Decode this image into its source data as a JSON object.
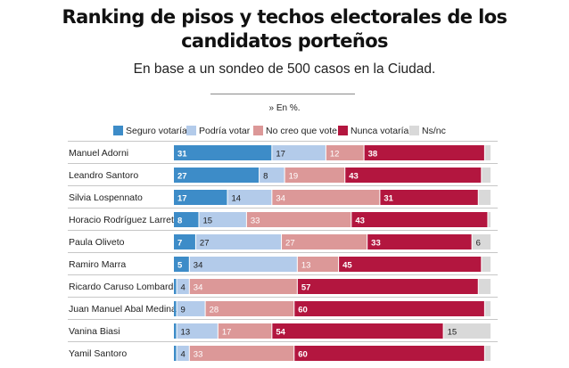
{
  "header": {
    "title_line1": "Ranking de pisos y techos electorales de los",
    "title_line2": "candidatos porteños",
    "subtitle": "En base a un sondeo de 500 casos en la Ciudad.",
    "unit_note": "» En %."
  },
  "colors": {
    "seguro": "#3d8cc8",
    "podria": "#b3cbea",
    "no_creo": "#dc9898",
    "nunca": "#b3163f",
    "nsnc": "#d9d9d9"
  },
  "chart_data": {
    "type": "bar",
    "stacked": true,
    "orientation": "horizontal",
    "title": "Ranking de pisos y techos electorales de los candidatos porteños",
    "unit": "%",
    "xlim": [
      0,
      100
    ],
    "categories": [
      "Manuel Adorni",
      "Leandro Santoro",
      "Silvia Lospennato",
      "Horacio Rodríguez Larreta",
      "Paula Oliveto",
      "Ramiro Marra",
      "Ricardo Caruso Lombardi",
      "Juan Manuel Abal Medina",
      "Vanina Biasi",
      "Yamil Santoro"
    ],
    "series": [
      {
        "key": "seguro",
        "name": "Seguro votaría",
        "values": [
          31,
          27,
          17,
          8,
          7,
          5,
          1,
          1,
          1,
          1
        ],
        "labels": [
          "31",
          "27",
          "17",
          "8",
          "7",
          "5",
          "",
          "",
          "",
          ""
        ]
      },
      {
        "key": "podria",
        "name": "Podría votar",
        "values": [
          17,
          8,
          14,
          15,
          27,
          34,
          4,
          9,
          13,
          4
        ],
        "labels": [
          "17",
          "8",
          "14",
          "15",
          "27",
          "34",
          "4",
          "9",
          "13",
          "4"
        ]
      },
      {
        "key": "no_creo",
        "name": "No creo que vote",
        "values": [
          12,
          19,
          34,
          33,
          27,
          13,
          34,
          28,
          17,
          33
        ],
        "labels": [
          "12",
          "19",
          "34",
          "33",
          "27",
          "13",
          "34",
          "28",
          "17",
          "33"
        ]
      },
      {
        "key": "nunca",
        "name": "Nunca votaría",
        "values": [
          38,
          43,
          31,
          43,
          33,
          45,
          57,
          60,
          54,
          60
        ],
        "labels": [
          "38",
          "43",
          "31",
          "43",
          "33",
          "45",
          "57",
          "60",
          "54",
          "60"
        ]
      },
      {
        "key": "nsnc",
        "name": "Ns/nc",
        "values": [
          2,
          3,
          4,
          1,
          6,
          3,
          4,
          2,
          15,
          2
        ],
        "labels": [
          "",
          "",
          "",
          "",
          "6",
          "",
          "",
          "",
          "15",
          ""
        ]
      }
    ]
  }
}
